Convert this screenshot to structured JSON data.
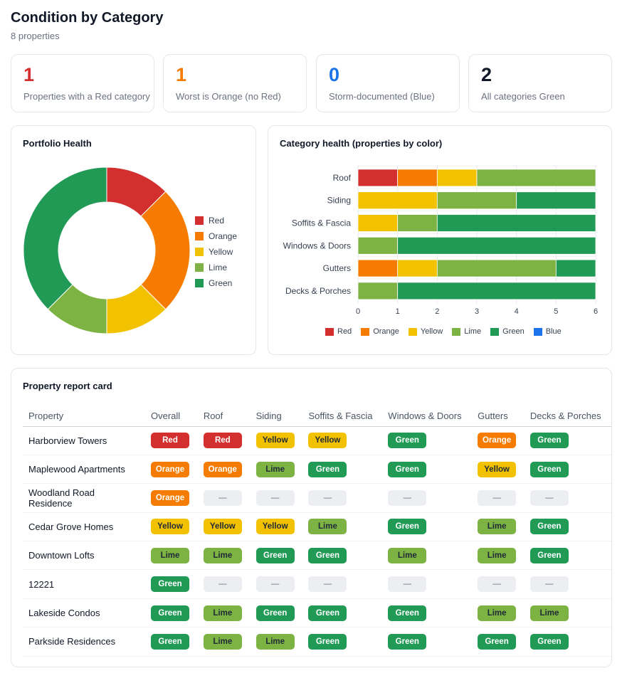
{
  "header": {
    "title": "Condition by Category",
    "subtitle": "8 properties"
  },
  "kpis": [
    {
      "value": "1",
      "label": "Properties with a Red category",
      "color": "#d32f2f"
    },
    {
      "value": "1",
      "label": "Worst is Orange (no Red)",
      "color": "#f57c00"
    },
    {
      "value": "0",
      "label": "Storm-documented (Blue)",
      "color": "#1a73e8"
    },
    {
      "value": "2",
      "label": "All categories Green",
      "color": "#111827"
    }
  ],
  "colors": {
    "Red": "#d32f2f",
    "Orange": "#f57c00",
    "Yellow": "#f2c200",
    "Lime": "#7cb342",
    "Green": "#219a56",
    "Blue": "#1a73e8"
  },
  "portfolio": {
    "title": "Portfolio Health",
    "chart_data": {
      "type": "pie",
      "labels": [
        "Red",
        "Orange",
        "Yellow",
        "Lime",
        "Green"
      ],
      "values": [
        1,
        2,
        1,
        1,
        3
      ]
    }
  },
  "category_health": {
    "title": "Category health (properties by color)",
    "chart_data": {
      "type": "bar",
      "orientation": "horizontal",
      "stacked": true,
      "categories": [
        "Roof",
        "Siding",
        "Soffits & Fascia",
        "Windows & Doors",
        "Gutters",
        "Decks & Porches"
      ],
      "series": [
        {
          "name": "Red",
          "values": [
            1,
            0,
            0,
            0,
            0,
            0
          ]
        },
        {
          "name": "Orange",
          "values": [
            1,
            0,
            0,
            0,
            1,
            0
          ]
        },
        {
          "name": "Yellow",
          "values": [
            1,
            2,
            1,
            0,
            1,
            0
          ]
        },
        {
          "name": "Lime",
          "values": [
            3,
            2,
            1,
            1,
            3,
            1
          ]
        },
        {
          "name": "Green",
          "values": [
            0,
            2,
            4,
            5,
            1,
            5
          ]
        },
        {
          "name": "Blue",
          "values": [
            0,
            0,
            0,
            0,
            0,
            0
          ]
        }
      ],
      "xlim": [
        0,
        6
      ],
      "xticks": [
        "0",
        "1",
        "2",
        "3",
        "4",
        "5",
        "6"
      ],
      "legend": "bottom"
    }
  },
  "report": {
    "title": "Property report card",
    "columns": [
      "Property",
      "Overall",
      "Roof",
      "Siding",
      "Soffits & Fascia",
      "Windows & Doors",
      "Gutters",
      "Decks & Porches"
    ],
    "empty": "—",
    "rows": [
      {
        "name": "Harborview Towers",
        "cells": [
          "Red",
          "Red",
          "Yellow",
          "Yellow",
          "Green",
          "Orange",
          "Green"
        ]
      },
      {
        "name": "Maplewood Apartments",
        "cells": [
          "Orange",
          "Orange",
          "Lime",
          "Green",
          "Green",
          "Yellow",
          "Green"
        ]
      },
      {
        "name": "Woodland Road Residence",
        "cells": [
          "Orange",
          "",
          "",
          "",
          "",
          "",
          ""
        ]
      },
      {
        "name": "Cedar Grove Homes",
        "cells": [
          "Yellow",
          "Yellow",
          "Yellow",
          "Lime",
          "Green",
          "Lime",
          "Green"
        ]
      },
      {
        "name": "Downtown Lofts",
        "cells": [
          "Lime",
          "Lime",
          "Green",
          "Green",
          "Lime",
          "Lime",
          "Green"
        ]
      },
      {
        "name": "12221",
        "cells": [
          "Green",
          "",
          "",
          "",
          "",
          "",
          ""
        ]
      },
      {
        "name": "Lakeside Condos",
        "cells": [
          "Green",
          "Lime",
          "Green",
          "Green",
          "Green",
          "Lime",
          "Lime"
        ]
      },
      {
        "name": "Parkside Residences",
        "cells": [
          "Green",
          "Lime",
          "Lime",
          "Green",
          "Green",
          "Green",
          "Green"
        ]
      }
    ]
  }
}
